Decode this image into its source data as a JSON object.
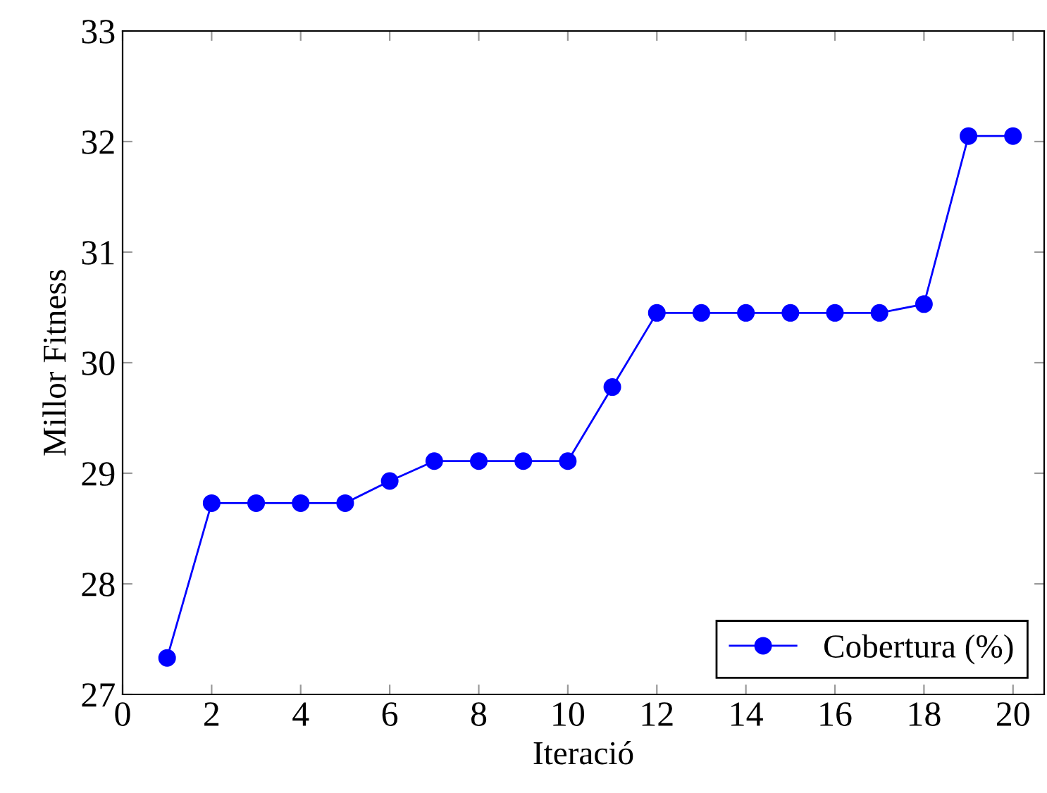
{
  "chart_data": {
    "type": "line",
    "xlabel": "Iteració",
    "ylabel": "Millor Fitness",
    "x": [
      1,
      2,
      3,
      4,
      5,
      6,
      7,
      8,
      9,
      10,
      11,
      12,
      13,
      14,
      15,
      16,
      17,
      18,
      19,
      20
    ],
    "series": [
      {
        "name": "Cobertura (%)",
        "color": "#0000ff",
        "values": [
          27.33,
          28.73,
          28.73,
          28.73,
          28.73,
          28.93,
          29.11,
          29.11,
          29.11,
          29.11,
          29.78,
          30.45,
          30.45,
          30.45,
          30.45,
          30.45,
          30.45,
          30.53,
          32.05,
          32.05
        ]
      }
    ],
    "xlim": [
      0,
      20.7
    ],
    "xticks": [
      0,
      2,
      4,
      6,
      8,
      10,
      12,
      14,
      16,
      18,
      20
    ],
    "ylim": [
      27,
      33
    ],
    "yticks": [
      27,
      28,
      29,
      30,
      31,
      32,
      33
    ],
    "grid": false,
    "legend": "bottom right",
    "marker": "circle",
    "line_style": "solid"
  }
}
